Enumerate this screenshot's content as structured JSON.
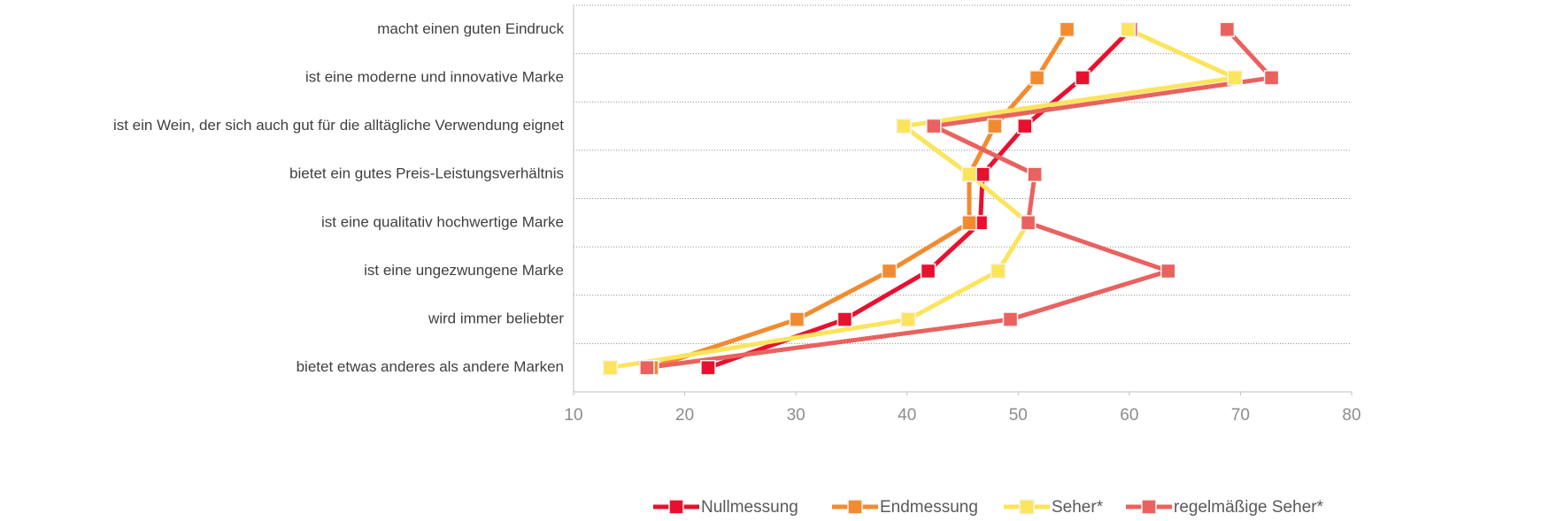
{
  "chart_data": {
    "type": "line",
    "orientation": "horizontal",
    "categories": [
      "macht einen guten Eindruck",
      "ist eine moderne und innovative Marke",
      "ist ein Wein, der sich auch gut für die alltägliche Verwendung eignet",
      "bietet ein gutes Preis-Leistungsverhältnis",
      "ist eine qualitativ hochwertige Marke",
      "ist eine ungezwungene Marke",
      "wird immer beliebter",
      "bietet etwas anderes als andere Marken"
    ],
    "series": [
      {
        "name": "Nullmessung",
        "color": "#e8102f",
        "values": [
          60.1,
          55.8,
          50.6,
          46.8,
          46.6,
          41.9,
          34.4,
          22.1
        ]
      },
      {
        "name": "Endmessung",
        "color": "#f28b30",
        "values": [
          54.4,
          51.7,
          47.9,
          45.6,
          45.6,
          38.4,
          30.1,
          17.0
        ]
      },
      {
        "name": "Seher*",
        "color": "#fce45c",
        "values": [
          59.9,
          69.5,
          39.7,
          45.6,
          50.9,
          48.2,
          40.1,
          13.3
        ]
      },
      {
        "name": "regelmäßige Seher*",
        "color": "#e9625f",
        "values": [
          68.8,
          72.8,
          42.4,
          51.5,
          50.9,
          63.5,
          49.3,
          16.6
        ]
      }
    ],
    "xlim": [
      10,
      80
    ],
    "xticks": [
      10,
      20,
      30,
      40,
      50,
      60,
      70,
      80
    ],
    "legend": "bottom"
  }
}
